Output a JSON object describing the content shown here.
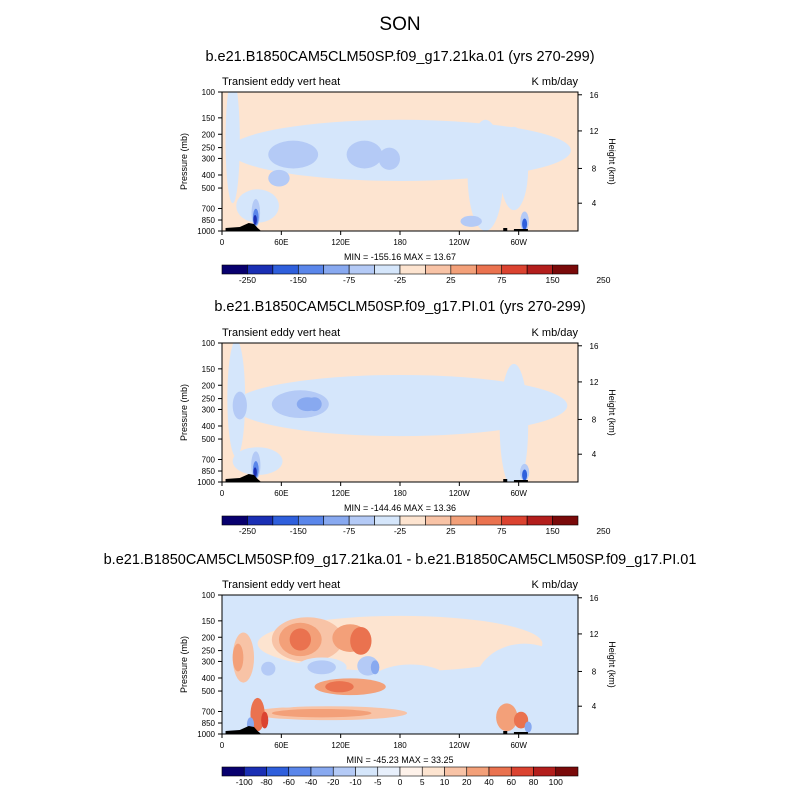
{
  "title": "SON",
  "colors": {
    "scale": [
      "#08006e",
      "#1a2fb4",
      "#2f5fdc",
      "#5a86ea",
      "#88a9f0",
      "#b4caf6",
      "#d5e6fb",
      "#fde4d0",
      "#f8c3a6",
      "#f3a079",
      "#ea724f",
      "#db4330",
      "#b31e1c",
      "#7a0a0a"
    ]
  },
  "chart_data": [
    {
      "type": "heatmap",
      "title": "b.e21.B1850CAM5CLM50SP.f09_g17.21ka.01 (yrs 270-299)",
      "left_label": "Transient eddy vert heat",
      "right_label": "K mb/day",
      "xlabel": "",
      "ylabel": "Pressure (mb)",
      "y2label": "Height (km)",
      "x_ticks": [
        "0",
        "60E",
        "120E",
        "180",
        "120W",
        "60W"
      ],
      "y_ticks": [
        "100",
        "150",
        "200",
        "250",
        "300",
        "400",
        "500",
        "700",
        "850",
        "1000"
      ],
      "y2_ticks": [
        "4",
        "8",
        "12",
        "16"
      ],
      "stats": "MIN = -155.16  MAX = 13.67",
      "colorbar_labels": [
        "-250",
        "-150",
        "-75",
        "-25",
        "25",
        "75",
        "150",
        "250"
      ]
    },
    {
      "type": "heatmap",
      "title": "b.e21.B1850CAM5CLM50SP.f09_g17.PI.01 (yrs 270-299)",
      "left_label": "Transient eddy vert heat",
      "right_label": "K mb/day",
      "xlabel": "",
      "ylabel": "Pressure (mb)",
      "y2label": "Height (km)",
      "x_ticks": [
        "0",
        "60E",
        "120E",
        "180",
        "120W",
        "60W"
      ],
      "y_ticks": [
        "100",
        "150",
        "200",
        "250",
        "300",
        "400",
        "500",
        "700",
        "850",
        "1000"
      ],
      "y2_ticks": [
        "4",
        "8",
        "12",
        "16"
      ],
      "stats": "MIN = -144.46  MAX = 13.36",
      "colorbar_labels": [
        "-250",
        "-150",
        "-75",
        "-25",
        "25",
        "75",
        "150",
        "250"
      ]
    },
    {
      "type": "heatmap",
      "title": "b.e21.B1850CAM5CLM50SP.f09_g17.21ka.01 - b.e21.B1850CAM5CLM50SP.f09_g17.PI.01",
      "left_label": "Transient eddy vert heat",
      "right_label": "K mb/day",
      "xlabel": "",
      "ylabel": "Pressure (mb)",
      "y2label": "Height (km)",
      "x_ticks": [
        "0",
        "60E",
        "120E",
        "180",
        "120W",
        "60W"
      ],
      "y_ticks": [
        "100",
        "150",
        "200",
        "250",
        "300",
        "400",
        "500",
        "700",
        "850",
        "1000"
      ],
      "y2_ticks": [
        "4",
        "8",
        "12",
        "16"
      ],
      "stats": "MIN = -45.23  MAX = 33.25",
      "colorbar_labels": [
        "-100",
        "-80",
        "-60",
        "-40",
        "-20",
        "-10",
        "-5",
        "0",
        "5",
        "10",
        "20",
        "40",
        "60",
        "80",
        "100"
      ]
    }
  ]
}
